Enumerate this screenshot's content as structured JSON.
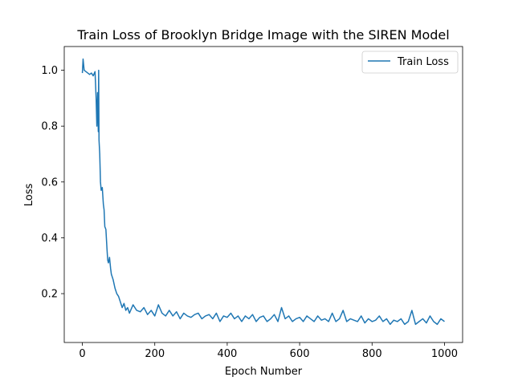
{
  "chart_data": {
    "type": "line",
    "title": "Train Loss of Brooklyn Bridge Image with the SIREN Model",
    "xlabel": "Epoch Number",
    "ylabel": "Loss",
    "xlim": [
      -50,
      1050
    ],
    "ylim": [
      0.025,
      1.085
    ],
    "xticks": [
      0,
      200,
      400,
      600,
      800,
      1000
    ],
    "yticks": [
      0.2,
      0.4,
      0.6,
      0.8,
      1.0
    ],
    "xtick_labels": [
      "0",
      "200",
      "400",
      "600",
      "800",
      "1000"
    ],
    "ytick_labels": [
      "0.2",
      "0.4",
      "0.6",
      "0.8",
      "1.0"
    ],
    "grid": false,
    "legend": {
      "placement": "top-right"
    },
    "series": [
      {
        "name": "Train Loss",
        "color": "#1f77b4",
        "x": [
          0,
          2,
          5,
          10,
          15,
          20,
          25,
          30,
          35,
          38,
          40,
          42,
          44,
          45,
          46,
          48,
          50,
          52,
          55,
          58,
          60,
          62,
          65,
          68,
          70,
          72,
          75,
          78,
          80,
          85,
          90,
          95,
          100,
          105,
          110,
          115,
          120,
          125,
          130,
          140,
          150,
          160,
          170,
          180,
          190,
          200,
          210,
          220,
          230,
          240,
          250,
          260,
          270,
          280,
          290,
          300,
          310,
          320,
          330,
          340,
          350,
          360,
          370,
          380,
          390,
          400,
          410,
          420,
          430,
          440,
          450,
          460,
          470,
          480,
          490,
          500,
          510,
          520,
          530,
          540,
          550,
          560,
          570,
          580,
          590,
          600,
          610,
          620,
          630,
          640,
          650,
          660,
          670,
          680,
          690,
          700,
          710,
          720,
          730,
          740,
          750,
          760,
          770,
          780,
          790,
          800,
          810,
          820,
          830,
          840,
          850,
          860,
          870,
          880,
          890,
          900,
          910,
          920,
          930,
          940,
          950,
          960,
          970,
          980,
          990,
          1000
        ],
        "y": [
          0.99,
          1.04,
          1.0,
          0.995,
          0.99,
          0.985,
          0.99,
          0.98,
          0.995,
          0.9,
          0.8,
          0.92,
          0.78,
          1.0,
          0.75,
          0.7,
          0.6,
          0.57,
          0.58,
          0.52,
          0.5,
          0.44,
          0.43,
          0.36,
          0.32,
          0.31,
          0.33,
          0.29,
          0.27,
          0.25,
          0.22,
          0.2,
          0.19,
          0.17,
          0.15,
          0.165,
          0.14,
          0.15,
          0.13,
          0.16,
          0.14,
          0.135,
          0.15,
          0.125,
          0.14,
          0.12,
          0.16,
          0.13,
          0.12,
          0.14,
          0.12,
          0.135,
          0.11,
          0.13,
          0.12,
          0.115,
          0.125,
          0.13,
          0.11,
          0.12,
          0.125,
          0.11,
          0.13,
          0.1,
          0.12,
          0.115,
          0.13,
          0.11,
          0.12,
          0.1,
          0.12,
          0.11,
          0.125,
          0.1,
          0.115,
          0.12,
          0.1,
          0.11,
          0.125,
          0.1,
          0.15,
          0.11,
          0.12,
          0.1,
          0.11,
          0.115,
          0.1,
          0.12,
          0.11,
          0.1,
          0.12,
          0.105,
          0.11,
          0.1,
          0.13,
          0.1,
          0.11,
          0.14,
          0.1,
          0.11,
          0.105,
          0.1,
          0.12,
          0.095,
          0.11,
          0.1,
          0.105,
          0.12,
          0.1,
          0.11,
          0.09,
          0.105,
          0.1,
          0.11,
          0.09,
          0.1,
          0.14,
          0.09,
          0.1,
          0.11,
          0.095,
          0.12,
          0.1,
          0.09,
          0.11,
          0.1
        ]
      }
    ]
  }
}
